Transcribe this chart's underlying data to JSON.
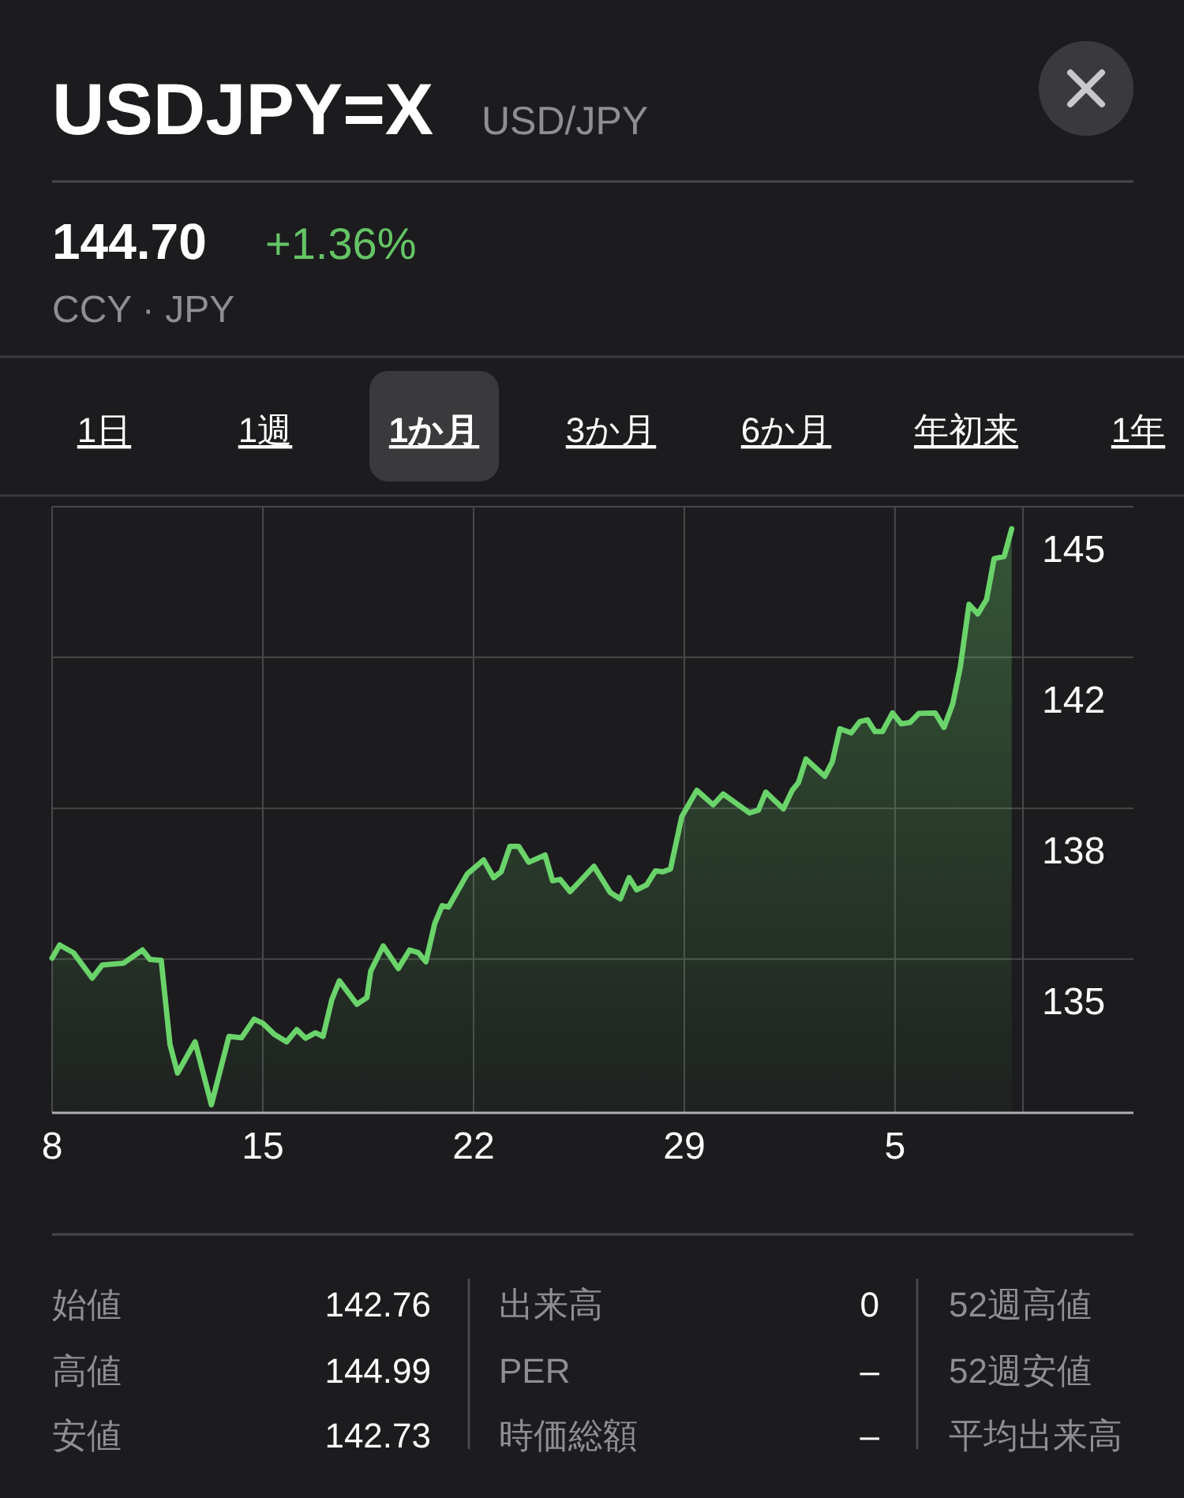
{
  "chart_data": {
    "type": "area",
    "title": "USDJPY=X",
    "subtitle": "USD/JPY",
    "annotations": [
      "144.70",
      "+1.36%",
      "CCY · JPY",
      "1日",
      "1週",
      "1か月",
      "3か月",
      "6か月",
      "年初来",
      "1年",
      "始値",
      "142.76",
      "高値",
      "144.99",
      "安値",
      "142.73",
      "出来高",
      "0",
      "PER",
      "–",
      "時価総額",
      "–",
      "52週高値",
      "52週安値",
      "平均出来高"
    ],
    "x": [
      "--08-08T00:00",
      "--08-08T06:00",
      "--08-08T17:00",
      "--08-09T08:00",
      "--08-09T16:00",
      "--08-10T09:00",
      "--08-11T00:00",
      "--08-11T06:00",
      "--08-11T15:00",
      "--08-11T22:00",
      "--08-12T04:00",
      "--08-12T18:00",
      "--08-13T07:00",
      "--08-13T21:00",
      "--08-14T07:00",
      "--08-14T17:00",
      "--08-15T00:00",
      "--08-15T09:00",
      "--08-15T19:00",
      "--08-16T03:00",
      "--08-16T10:00",
      "--08-16T18:00",
      "--08-17T00:00",
      "--08-17T07:00",
      "--08-17T13:00",
      "--08-18T03:00",
      "--08-18T11:00",
      "--08-18T14:00",
      "--08-19T00:00",
      "--08-19T12:00",
      "--08-19T21:00",
      "--08-20T04:00",
      "--08-20T10:00",
      "--08-20T17:00",
      "--08-20T23:00",
      "--08-21T04:00",
      "--08-21T19:00",
      "--08-22T08:00",
      "--08-22T16:00",
      "--08-22T22:00",
      "--08-23T05:00",
      "--08-23T12:00",
      "--08-23T20:00",
      "--08-24T09:00",
      "--08-24T15:00",
      "--08-24T21:00",
      "--08-25T05:00",
      "--08-26T00:00",
      "--08-26T13:00",
      "--08-26T21:00",
      "--08-27T04:00",
      "--08-27T10:00",
      "--08-27T18:00",
      "--08-28T01:00",
      "--08-28T07:00",
      "--08-28T13:00",
      "--08-28T22:00",
      "--08-29T10:00",
      "--08-29T23:00",
      "--08-30T07:00",
      "--08-31T04:00",
      "--08-31T11:00",
      "--08-31T17:00",
      "--09-01T07:00",
      "--09-01T14:00",
      "--09-01T19:00",
      "--09-02T01:00",
      "--09-02T16:00",
      "--09-02T22:00",
      "--09-03T04:00",
      "--09-03T13:00",
      "--09-03T20:00",
      "--09-04T02:00",
      "--09-04T08:00",
      "--09-04T14:00",
      "--09-04T22:00",
      "--09-05T05:00",
      "--09-05T12:00",
      "--09-05T19:00",
      "--09-06T08:00",
      "--09-06T15:00",
      "--09-06T22:00",
      "--09-07T04:00",
      "--09-07T11:00",
      "--09-07T18:00",
      "--09-08T01:00",
      "--09-08T07:00",
      "--09-08T15:00",
      "--09-08T21:00"
    ],
    "values": [
      135.02,
      135.31,
      135.14,
      134.58,
      134.87,
      134.91,
      135.2,
      134.99,
      134.97,
      133.11,
      132.48,
      133.17,
      131.78,
      133.29,
      133.26,
      133.67,
      133.58,
      133.34,
      133.17,
      133.44,
      133.25,
      133.37,
      133.29,
      134.1,
      134.52,
      134.0,
      134.15,
      134.73,
      135.29,
      134.79,
      135.2,
      135.14,
      134.94,
      135.78,
      136.18,
      136.15,
      136.88,
      137.19,
      136.8,
      136.93,
      137.49,
      137.49,
      137.14,
      137.3,
      136.73,
      136.76,
      136.49,
      137.05,
      136.47,
      136.33,
      136.8,
      136.53,
      136.64,
      136.95,
      136.93,
      136.99,
      138.15,
      138.73,
      138.41,
      138.65,
      138.23,
      138.29,
      138.69,
      138.32,
      138.73,
      138.9,
      139.42,
      139.04,
      139.36,
      140.09,
      140.0,
      140.25,
      140.29,
      140.03,
      140.03,
      140.44,
      140.2,
      140.23,
      140.43,
      140.44,
      140.12,
      140.64,
      141.45,
      142.84,
      142.63,
      142.95,
      143.85,
      143.9,
      144.51
    ],
    "color": "#6ad36a",
    "xlim": [
      "--08-08T00:00",
      "--09-09T06:00"
    ],
    "xticks": [
      {
        "value": "--08-08",
        "label": "8"
      },
      {
        "value": "--08-15",
        "label": "15"
      },
      {
        "value": "--08-22",
        "label": "22"
      },
      {
        "value": "--08-29",
        "label": "29"
      },
      {
        "value": "--09-05",
        "label": "5"
      }
    ],
    "ylim": [
      131.6,
      145
    ],
    "yticks": [
      {
        "value": 135,
        "label": "135"
      },
      {
        "value": 138.33,
        "label": "138"
      },
      {
        "value": 141.67,
        "label": "142"
      },
      {
        "value": 145,
        "label": "145"
      }
    ],
    "grid": true
  }
}
